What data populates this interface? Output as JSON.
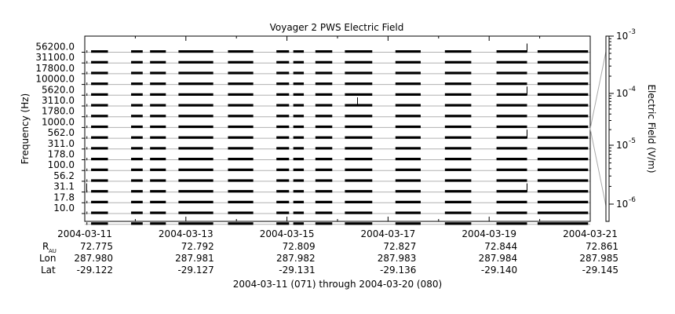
{
  "chart_data": {
    "type": "line",
    "title": "Voyager 2 PWS Electric Field",
    "ylabel": "Frequency (Hz)",
    "colorbar_label": "Electric Field (V/m)",
    "frequency_channels": [
      "56200.0",
      "31100.0",
      "17800.0",
      "10000.0",
      "5620.0",
      "3110.0",
      "1780.0",
      "1000.0",
      "562.0",
      "311.0",
      "178.0",
      "100.0",
      "56.2",
      "31.1",
      "17.8",
      "10.0"
    ],
    "x_ticks": [
      {
        "date": "2004-03-11",
        "r_au": "72.775",
        "lon": "287.980",
        "lat": "-29.122"
      },
      {
        "date": "2004-03-13",
        "r_au": "72.792",
        "lon": "287.981",
        "lat": "-29.127"
      },
      {
        "date": "2004-03-15",
        "r_au": "72.809",
        "lon": "287.982",
        "lat": "-29.131"
      },
      {
        "date": "2004-03-17",
        "r_au": "72.827",
        "lon": "287.983",
        "lat": "-29.136"
      },
      {
        "date": "2004-03-19",
        "r_au": "72.844",
        "lon": "287.984",
        "lat": "-29.140"
      },
      {
        "date": "2004-03-21",
        "r_au": "72.861",
        "lon": "287.985",
        "lat": "-29.145"
      }
    ],
    "xlim": [
      "2004-03-11",
      "2004-03-21"
    ],
    "data_segments": [
      [
        "2004-03-11T00:50",
        "2004-03-11T01:10"
      ],
      [
        "2004-03-11T03:00",
        "2004-03-11T11:00"
      ],
      [
        "2004-03-11T22:00",
        "2004-03-12T03:30"
      ],
      [
        "2004-03-12T07:00",
        "2004-03-12T14:30"
      ],
      [
        "2004-03-12T20:30",
        "2004-03-13T13:00"
      ],
      [
        "2004-03-13T20:00",
        "2004-03-14T08:00"
      ],
      [
        "2004-03-14T19:00",
        "2004-03-15T01:00"
      ],
      [
        "2004-03-15T03:00",
        "2004-03-15T08:00"
      ],
      [
        "2004-03-15T13:30",
        "2004-03-15T21:30"
      ],
      [
        "2004-03-16T03:30",
        "2004-03-16T16:30"
      ],
      [
        "2004-03-17T03:30",
        "2004-03-17T15:30"
      ],
      [
        "2004-03-18T03:00",
        "2004-03-18T15:30"
      ],
      [
        "2004-03-19T03:30",
        "2004-03-19T18:00"
      ],
      [
        "2004-03-19T23:00",
        "2004-03-20T23:00"
      ]
    ],
    "spikes": [
      {
        "time": "2004-03-16T09:30",
        "channel": "3110.0"
      },
      {
        "time": "2004-03-19T18:00",
        "channel": "56200.0"
      },
      {
        "time": "2004-03-19T18:00",
        "channel": "5620.0"
      },
      {
        "time": "2004-03-19T18:00",
        "channel": "562.0"
      },
      {
        "time": "2004-03-19T18:00",
        "channel": "31.1"
      },
      {
        "time": "2004-03-11T00:55",
        "channel": "31.1"
      }
    ],
    "colorbar": {
      "scale": "log",
      "ticks": [
        {
          "base": "10",
          "exp": "-3"
        },
        {
          "base": "10",
          "exp": "-4"
        },
        {
          "base": "10",
          "exp": "-5"
        },
        {
          "base": "10",
          "exp": "-6"
        }
      ]
    },
    "grid": true,
    "footer": "2004-03-11 (071) through 2004-03-20 (080)"
  },
  "row_labels": {
    "r_au": "R",
    "r_au_sub": "AU",
    "lon": "Lon",
    "lat": "Lat"
  }
}
